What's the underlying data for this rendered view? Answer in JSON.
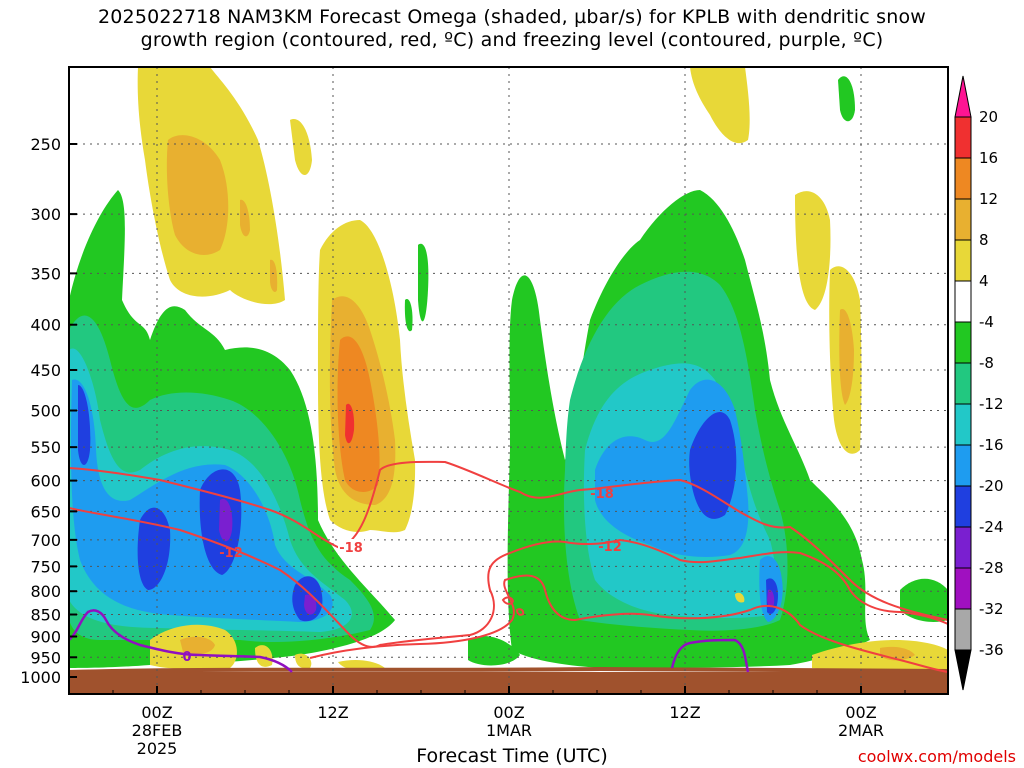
{
  "page": {
    "title_line1": "2025022718 NAM3KM Forecast Omega (shaded, µbar/s) for KPLB with dendritic snow",
    "title_line2": "growth region (contoured, red, ºC) and freezing level (contoured, purple, ºC)",
    "xlabel": "Forecast Time (UTC)",
    "credit": "coolwx.com/models"
  },
  "chart_data": {
    "type": "heatmap",
    "title": "2025022718 NAM3KM Forecast Omega (shaded, µbar/s) for KPLB with dendritic snow growth region (contoured, red, ºC) and freezing level (contoured, purple, ºC)",
    "xlabel": "Forecast Time (UTC)",
    "ylabel": "",
    "y_scale": "log-pressure (inverted)",
    "yticks": [
      "250",
      "300",
      "350",
      "400",
      "450",
      "500",
      "550",
      "600",
      "650",
      "700",
      "750",
      "800",
      "850",
      "900",
      "950",
      "1000"
    ],
    "ylim": [
      1000,
      200
    ],
    "xlim_hours_from_run": [
      0,
      60
    ],
    "xticks": [
      {
        "line1": "00Z",
        "line2": "28FEB",
        "line3": "2025",
        "hour": 6
      },
      {
        "line1": "12Z",
        "line2": "",
        "line3": "",
        "hour": 18
      },
      {
        "line1": "00Z",
        "line2": "1MAR",
        "line3": "",
        "hour": 30
      },
      {
        "line1": "12Z",
        "line2": "",
        "line3": "",
        "hour": 42
      },
      {
        "line1": "00Z",
        "line2": "2MAR",
        "line3": "",
        "hour": 54
      }
    ],
    "grid": true,
    "colorbar": {
      "labels": [
        "20",
        "16",
        "12",
        "8",
        "4",
        "-4",
        "-8",
        "-12",
        "-16",
        "-20",
        "-24",
        "-28",
        "-32",
        "-36"
      ],
      "colors": [
        "#ff1493",
        "#f03030",
        "#ee8822",
        "#e8b030",
        "#e8d838",
        "#ffffff",
        "#22c822",
        "#22c880",
        "#22c8c8",
        "#1e9cf0",
        "#1f3fe0",
        "#7a1fd0",
        "#a010c0",
        "#a8a8a8",
        "#000000"
      ]
    },
    "contour_labels": [
      "-18",
      "-12",
      "-18",
      "-12",
      "0"
    ],
    "series": [
      {
        "name": "dendritic snow growth region",
        "color": "#f04040"
      },
      {
        "name": "freezing level",
        "color": "#9010c0"
      }
    ]
  }
}
